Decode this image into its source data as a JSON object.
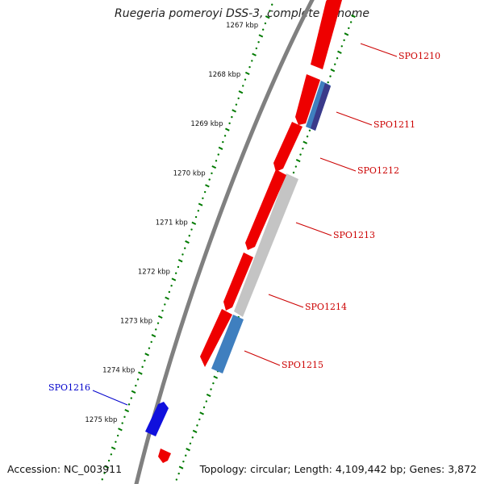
{
  "title": "Ruegeria pomeroyi DSS-3, complete genome",
  "footer": {
    "accession": "Accession: NC_003911",
    "topology": "Topology: circular; Length: 4,109,442 bp; Genes: 3,872"
  },
  "colors": {
    "forward_gene": "#ee0000",
    "reverse_gene": "#1010dd",
    "rna_blue": "#3f7fbf",
    "rna_gray": "#c4c4c4",
    "rna_purple": "#3a3a8a",
    "tick_green": "#007a00",
    "backbone": "#808080",
    "label_red": "#cc0000",
    "label_blue": "#0000cc"
  },
  "ticks": [
    {
      "kbp": 1267,
      "label": "1267 kbp"
    },
    {
      "kbp": 1268,
      "label": "1268 kbp"
    },
    {
      "kbp": 1269,
      "label": "1269 kbp"
    },
    {
      "kbp": 1270,
      "label": "1270 kbp"
    },
    {
      "kbp": 1271,
      "label": "1271 kbp"
    },
    {
      "kbp": 1272,
      "label": "1272 kbp"
    },
    {
      "kbp": 1273,
      "label": "1273 kbp"
    },
    {
      "kbp": 1274,
      "label": "1274 kbp"
    },
    {
      "kbp": 1275,
      "label": "1275 kbp"
    }
  ],
  "genes": [
    {
      "name": "SPO1210",
      "strand": "forward"
    },
    {
      "name": "SPO1211",
      "strand": "forward"
    },
    {
      "name": "SPO1212",
      "strand": "forward"
    },
    {
      "name": "SPO1213",
      "strand": "forward"
    },
    {
      "name": "SPO1214",
      "strand": "forward"
    },
    {
      "name": "SPO1215",
      "strand": "forward"
    },
    {
      "name": "SPO1216",
      "strand": "reverse"
    }
  ]
}
